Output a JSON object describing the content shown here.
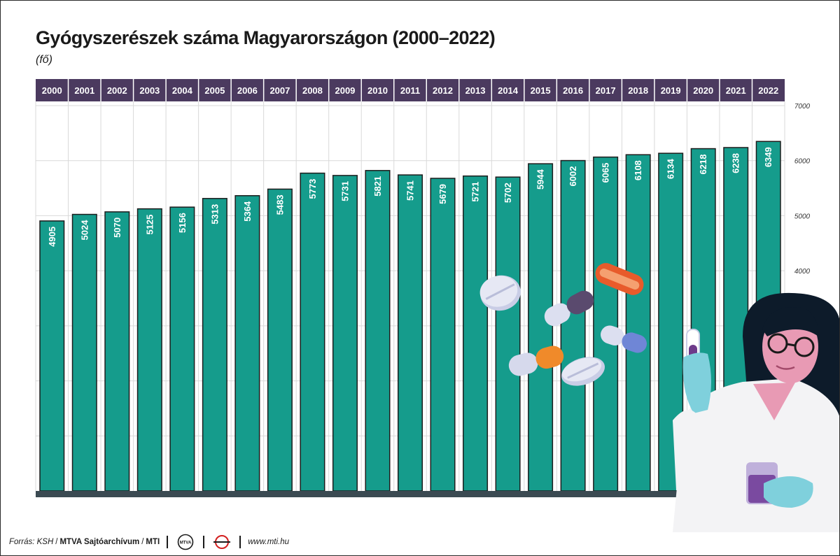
{
  "title": "Gyógyszerészek száma Magyarországon (2000–2022)",
  "unit": "(fő)",
  "footer": {
    "source_label": "Forrás: KSH",
    "slash": "/",
    "archive": "MTVA Sajtóarchívum",
    "agency": "MTI",
    "website": "www.mti.hu"
  },
  "logos": {
    "mtva": "MTVA"
  },
  "colors": {
    "bar": "#159c8c",
    "bar_border": "#1d1d1d",
    "header": "#4b3a5f",
    "baseline": "#3b4a52"
  },
  "chart_data": {
    "type": "bar",
    "title": "Gyógyszerészek száma Magyarországon (2000–2022)",
    "ylabel": "(fő)",
    "categories": [
      "2000",
      "2001",
      "2002",
      "2003",
      "2004",
      "2005",
      "2006",
      "2007",
      "2008",
      "2009",
      "2010",
      "2011",
      "2012",
      "2013",
      "2014",
      "2015",
      "2016",
      "2017",
      "2018",
      "2019",
      "2020",
      "2021",
      "2022"
    ],
    "values": [
      4905,
      5024,
      5070,
      5125,
      5156,
      5313,
      5364,
      5483,
      5773,
      5731,
      5821,
      5741,
      5679,
      5721,
      5702,
      5944,
      6002,
      6065,
      6108,
      6134,
      6218,
      6238,
      6349
    ],
    "ylim": [
      0,
      7000
    ],
    "yticks": [
      4000,
      5000,
      6000,
      7000
    ],
    "grid": true,
    "legend": "none"
  }
}
